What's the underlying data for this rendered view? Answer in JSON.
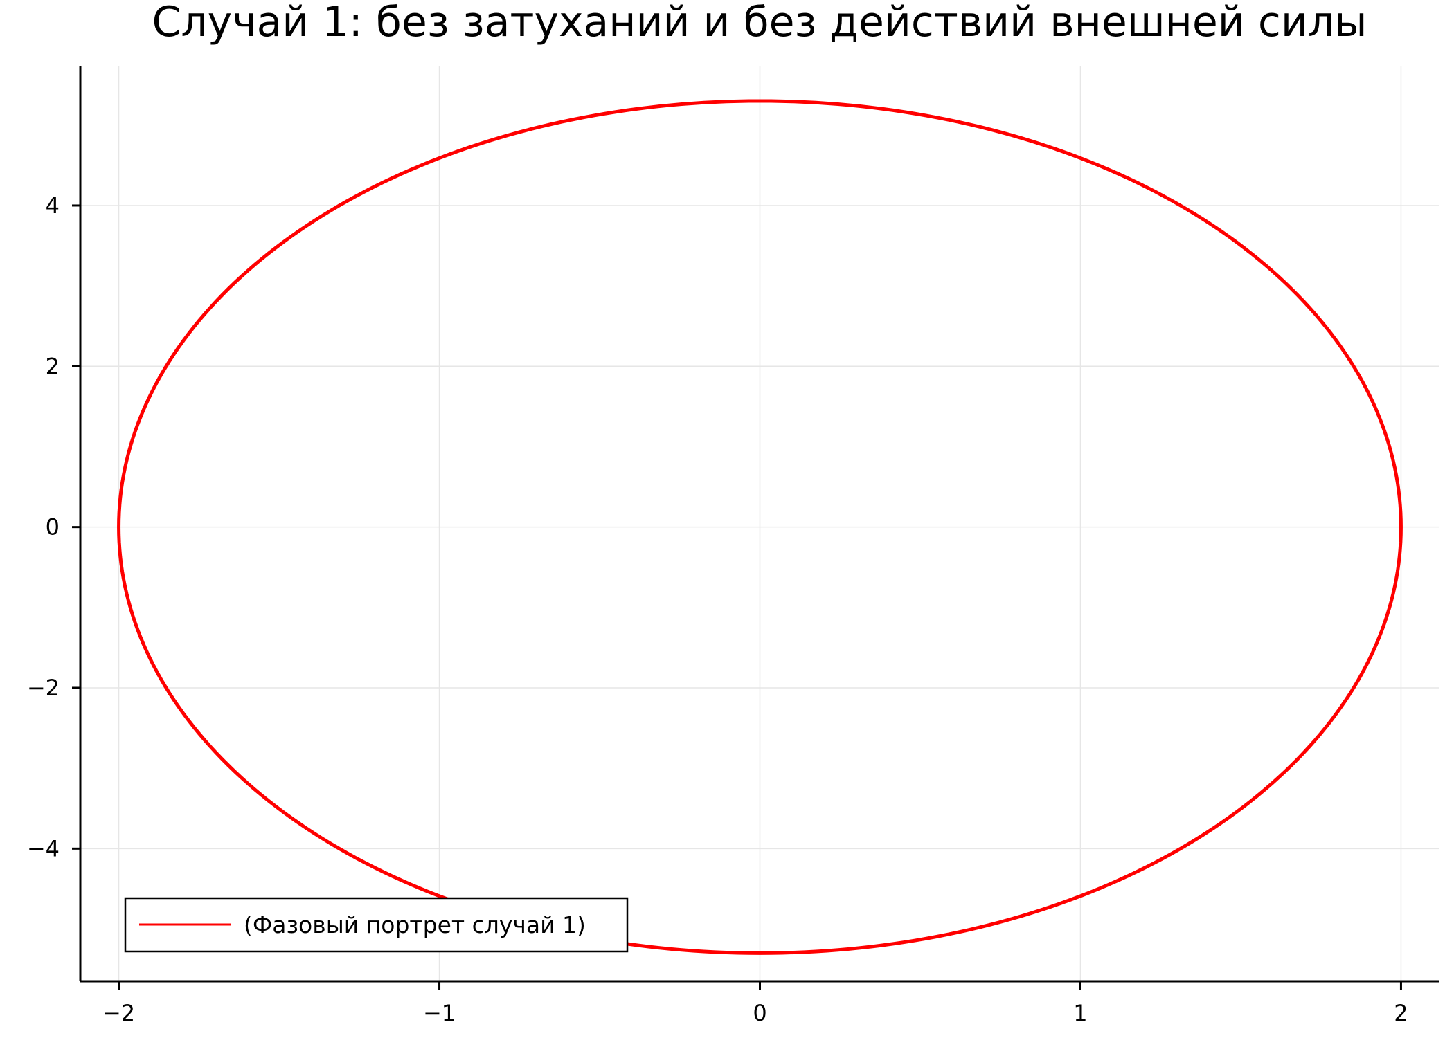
{
  "chart_data": {
    "type": "line",
    "title": "Случай 1: без затуханий и без действий внешней силы",
    "xlabel": "",
    "ylabel": "",
    "xlim": [
      -2.12,
      2.12
    ],
    "ylim": [
      -5.65,
      5.73
    ],
    "xticks": [
      -2,
      -1,
      0,
      1,
      2
    ],
    "yticks": [
      -4,
      -2,
      0,
      2,
      4
    ],
    "xtick_labels": [
      "−2",
      "−1",
      "0",
      "1",
      "2"
    ],
    "ytick_labels": [
      "−4",
      "−2",
      "0",
      "2",
      "4"
    ],
    "grid": true,
    "legend_position": "bottom-left",
    "series": [
      {
        "name": "(Фазовый портрет случай 1)",
        "color": "#ff0000",
        "curve": "closed phase trajectory (ellipse)",
        "x_amplitude": 2.0,
        "y_amplitude": 5.3,
        "x": [
          2,
          1.9319,
          1.7321,
          1.4142,
          1,
          0.5176,
          0,
          -0.5176,
          -1,
          -1.4142,
          -1.7321,
          -1.9319,
          -2,
          -1.9319,
          -1.7321,
          -1.4142,
          -1,
          -0.5176,
          0,
          0.5176,
          1,
          1.4142,
          1.7321,
          1.9319,
          2
        ],
        "y": [
          0,
          1.3717,
          2.65,
          3.7477,
          4.5899,
          5.1194,
          5.3,
          5.1194,
          4.5899,
          3.7477,
          2.65,
          1.3717,
          0,
          -1.3717,
          -2.65,
          -3.7477,
          -4.5899,
          -5.1194,
          -5.3,
          -5.1194,
          -4.5899,
          -3.7477,
          -2.65,
          -1.3717,
          0
        ]
      }
    ]
  }
}
